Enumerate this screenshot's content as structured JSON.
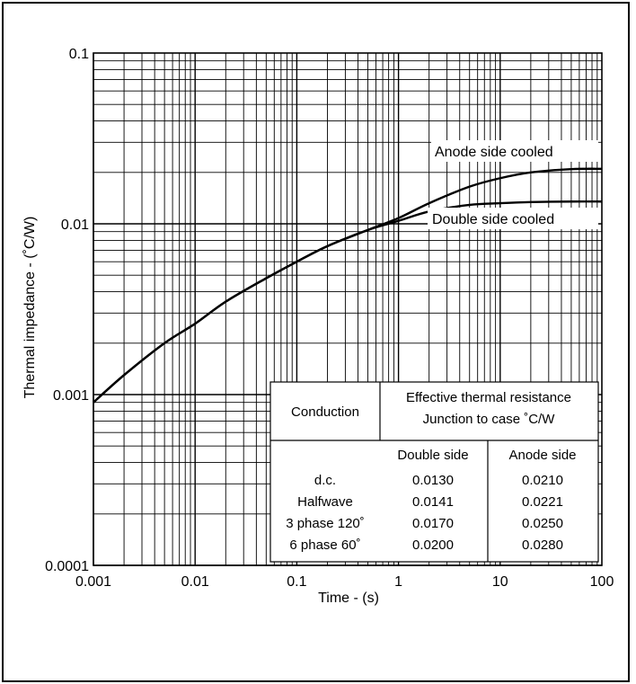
{
  "chart_data": {
    "type": "line",
    "title": "",
    "xlabel": "Time - (s)",
    "ylabel": "Thermal impedance - (˚C/W)",
    "xscale": "log",
    "yscale": "log",
    "xlim": [
      0.001,
      100
    ],
    "ylim": [
      0.0001,
      0.1
    ],
    "grid": true,
    "x_tick_labels": [
      "0.001",
      "0.01",
      "0.1",
      "1",
      "10",
      "100"
    ],
    "y_tick_labels": [
      "0.0001",
      "0.001",
      "0.01",
      "0.1"
    ],
    "series": [
      {
        "name": "Anode side cooled",
        "x": [
          0.001,
          0.002,
          0.005,
          0.01,
          0.02,
          0.05,
          0.1,
          0.2,
          0.5,
          1,
          2,
          5,
          10,
          20,
          50,
          100
        ],
        "y": [
          0.0009,
          0.0013,
          0.002,
          0.0026,
          0.0035,
          0.0048,
          0.006,
          0.0074,
          0.0092,
          0.0108,
          0.0132,
          0.0165,
          0.0185,
          0.02,
          0.0209,
          0.021
        ]
      },
      {
        "name": "Double side cooled",
        "x": [
          0.001,
          0.002,
          0.005,
          0.01,
          0.02,
          0.05,
          0.1,
          0.2,
          0.5,
          1,
          2,
          5,
          10,
          20,
          50,
          100
        ],
        "y": [
          0.0009,
          0.0013,
          0.002,
          0.0026,
          0.0035,
          0.0048,
          0.006,
          0.0074,
          0.0092,
          0.0104,
          0.0118,
          0.0129,
          0.0132,
          0.0134,
          0.0135,
          0.0135
        ]
      }
    ],
    "annotations": [
      "Anode side cooled",
      "Double side cooled"
    ],
    "table": {
      "header_conduction": "Conduction",
      "header_resistance_line1": "Effective thermal resistance",
      "header_resistance_line2": "Junction to case ˚C/W",
      "col_double": "Double side",
      "col_anode": "Anode side",
      "rows": [
        {
          "conduction": "d.c.",
          "double": "0.0130",
          "anode": "0.0210"
        },
        {
          "conduction": "Halfwave",
          "double": "0.0141",
          "anode": "0.0221"
        },
        {
          "conduction": "3 phase 120˚",
          "double": "0.0170",
          "anode": "0.0250"
        },
        {
          "conduction": "6 phase 60˚",
          "double": "0.0200",
          "anode": "0.0280"
        }
      ]
    }
  }
}
